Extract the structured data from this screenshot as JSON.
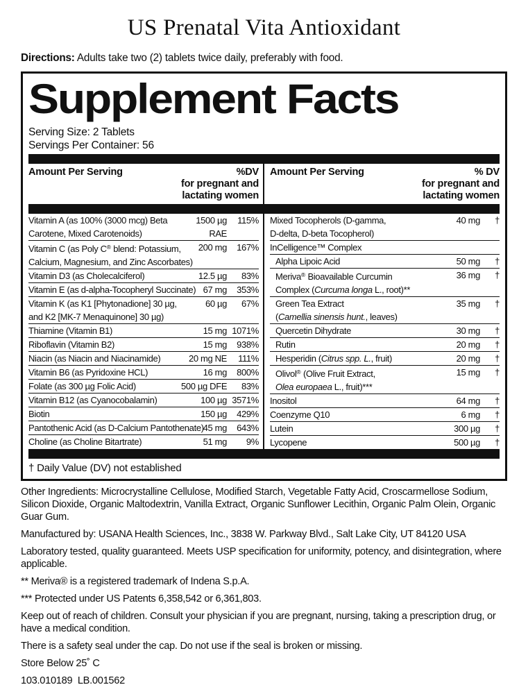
{
  "page": {
    "title": "US Prenatal Vita Antioxidant",
    "directions_label": "Directions:",
    "directions_text": " Adults take two (2) tablets twice daily, preferably with food."
  },
  "panel": {
    "title": "Supplement Facts",
    "serving_size": "Serving Size: 2 Tablets",
    "servings_per_container": "Servings Per Container: 56",
    "footnote": "† Daily Value (DV) not established",
    "header": {
      "amount_label": "Amount Per Serving",
      "dv_left": "%DV",
      "dv_right": "% DV",
      "dv_sub1": "for pregnant and",
      "dv_sub2": "lactating women"
    },
    "left_rows": [
      {
        "lines": [
          [
            {
              "t": "Vitamin A (as 100% (3000 mcg) Beta"
            }
          ],
          [
            {
              "t": "Carotene, Mixed Carotenoids)"
            }
          ]
        ],
        "amount": "1500 µg",
        "amount2": "RAE",
        "dv": "115%"
      },
      {
        "lines": [
          [
            {
              "t": "Vitamin C (as Poly C"
            },
            {
              "t": "®",
              "s": "sup"
            },
            {
              "t": " blend: Potassium,"
            }
          ],
          [
            {
              "t": "Calcium, Magnesium, and Zinc Ascorbates)"
            }
          ]
        ],
        "amount": "200 mg",
        "dv": "167%"
      },
      {
        "lines": [
          [
            {
              "t": "Vitamin D3 (as Cholecalciferol)"
            }
          ]
        ],
        "amount": "12.5 µg",
        "dv": "83%"
      },
      {
        "lines": [
          [
            {
              "t": "Vitamin E (as d-alpha-Tocopheryl Succinate)"
            }
          ]
        ],
        "amount": "67 mg",
        "dv": "353%"
      },
      {
        "lines": [
          [
            {
              "t": "Vitamin K (as K1 [Phytonadione] 30 µg,"
            }
          ],
          [
            {
              "t": "and K2 [MK-7 Menaquinone] 30 µg)"
            }
          ]
        ],
        "amount": "60 µg",
        "dv": "67%"
      },
      {
        "lines": [
          [
            {
              "t": "Thiamine (Vitamin B1)"
            }
          ]
        ],
        "amount": "15 mg",
        "dv": "1071%"
      },
      {
        "lines": [
          [
            {
              "t": "Riboflavin (Vitamin B2)"
            }
          ]
        ],
        "amount": "15 mg",
        "dv": "938%"
      },
      {
        "lines": [
          [
            {
              "t": "Niacin (as Niacin and Niacinamide)"
            }
          ]
        ],
        "amount": "20 mg NE",
        "dv": "111%"
      },
      {
        "lines": [
          [
            {
              "t": "Vitamin B6 (as Pyridoxine HCL)"
            }
          ]
        ],
        "amount": "16 mg",
        "dv": "800%"
      },
      {
        "lines": [
          [
            {
              "t": "Folate (as 300 µg Folic Acid)"
            }
          ]
        ],
        "amount": "500 µg DFE",
        "dv": "83%"
      },
      {
        "lines": [
          [
            {
              "t": "Vitamin B12 (as Cyanocobalamin)"
            }
          ]
        ],
        "amount": "100 µg",
        "dv": "3571%"
      },
      {
        "lines": [
          [
            {
              "t": "Biotin"
            }
          ]
        ],
        "amount": "150 µg",
        "dv": "429%"
      },
      {
        "lines": [
          [
            {
              "t": "Pantothenic Acid (as D-Calcium Pantothenate)"
            }
          ]
        ],
        "amount": "45 mg",
        "dv": "643%"
      },
      {
        "lines": [
          [
            {
              "t": "Choline (as Choline Bitartrate)"
            }
          ]
        ],
        "amount": "51 mg",
        "dv": "9%"
      }
    ],
    "right_rows": [
      {
        "lines": [
          [
            {
              "t": "Mixed Tocopherols (D-gamma,"
            }
          ],
          [
            {
              "t": "D-delta, D-beta Tocopherol)"
            }
          ]
        ],
        "amount": "40 mg",
        "dv": "†"
      },
      {
        "lines": [
          [
            {
              "t": "InCelligence™ Complex"
            }
          ]
        ],
        "group": true
      },
      {
        "indent": true,
        "lines": [
          [
            {
              "t": "Alpha Lipoic Acid"
            }
          ]
        ],
        "amount": "50 mg",
        "dv": "†"
      },
      {
        "indent": true,
        "lines": [
          [
            {
              "t": "Meriva"
            },
            {
              "t": "®",
              "s": "sup"
            },
            {
              "t": " Bioavailable Curcumin"
            }
          ],
          [
            {
              "t": "Complex ("
            },
            {
              "t": "Curcuma longa",
              "s": "i"
            },
            {
              "t": " L., root)**"
            }
          ]
        ],
        "amount": "36 mg",
        "dv": "†"
      },
      {
        "indent": true,
        "lines": [
          [
            {
              "t": "Green Tea Extract"
            }
          ],
          [
            {
              "t": "("
            },
            {
              "t": "Camellia sinensis hunt.",
              "s": "i"
            },
            {
              "t": ", leaves)"
            }
          ]
        ],
        "amount": "35 mg",
        "dv": "†"
      },
      {
        "indent": true,
        "lines": [
          [
            {
              "t": "Quercetin Dihydrate"
            }
          ]
        ],
        "amount": "30 mg",
        "dv": "†"
      },
      {
        "indent": true,
        "lines": [
          [
            {
              "t": "Rutin"
            }
          ]
        ],
        "amount": "20 mg",
        "dv": "†"
      },
      {
        "indent": true,
        "lines": [
          [
            {
              "t": "Hesperidin ("
            },
            {
              "t": "Citrus spp. L.",
              "s": "i"
            },
            {
              "t": ", fruit)"
            }
          ]
        ],
        "amount": "20 mg",
        "dv": "†"
      },
      {
        "indent": true,
        "lines": [
          [
            {
              "t": "Olivol"
            },
            {
              "t": "®",
              "s": "sup"
            },
            {
              "t": " (Olive Fruit Extract,"
            }
          ],
          [
            {
              "t": "Olea europaea",
              "s": "i"
            },
            {
              "t": " L., fruit)***"
            }
          ]
        ],
        "amount": "15 mg",
        "dv": "†"
      },
      {
        "lines": [
          [
            {
              "t": "Inositol"
            }
          ]
        ],
        "amount": "64 mg",
        "dv": "†"
      },
      {
        "lines": [
          [
            {
              "t": "Coenzyme Q10"
            }
          ]
        ],
        "amount": "6 mg",
        "dv": "†"
      },
      {
        "lines": [
          [
            {
              "t": "Lutein"
            }
          ]
        ],
        "amount": "300 µg",
        "dv": "†"
      },
      {
        "lines": [
          [
            {
              "t": "Lycopene"
            }
          ]
        ],
        "amount": "500 µg",
        "dv": "†"
      }
    ]
  },
  "footer": {
    "paragraphs": [
      "Other Ingredients: Microcrystalline Cellulose, Modified Starch, Vegetable Fatty Acid, Croscarmellose Sodium, Silicon Dioxide, Organic Maltodextrin, Vanilla Extract, Organic Sunflower Lecithin, Organic Palm Olein, Organic Guar Gum.",
      "Manufactured by: USANA Health Sciences, Inc., 3838 W. Parkway Blvd., Salt Lake City, UT 84120 USA",
      "Laboratory tested, quality guaranteed. Meets USP specification for uniformity, potency, and disintegration, where applicable.",
      "** Meriva® is a registered trademark of Indena S.p.A.",
      "*** Protected under US Patents 6,358,542 or 6,361,803.",
      "Keep out of reach of children. Consult your physician if you are pregnant, nursing, taking a prescription drug, or have a medical condition.",
      "There is a safety seal under the cap. Do not use if the seal is broken or missing.",
      "Store Below 25˚ C",
      "103.010189  LB.001562"
    ]
  }
}
